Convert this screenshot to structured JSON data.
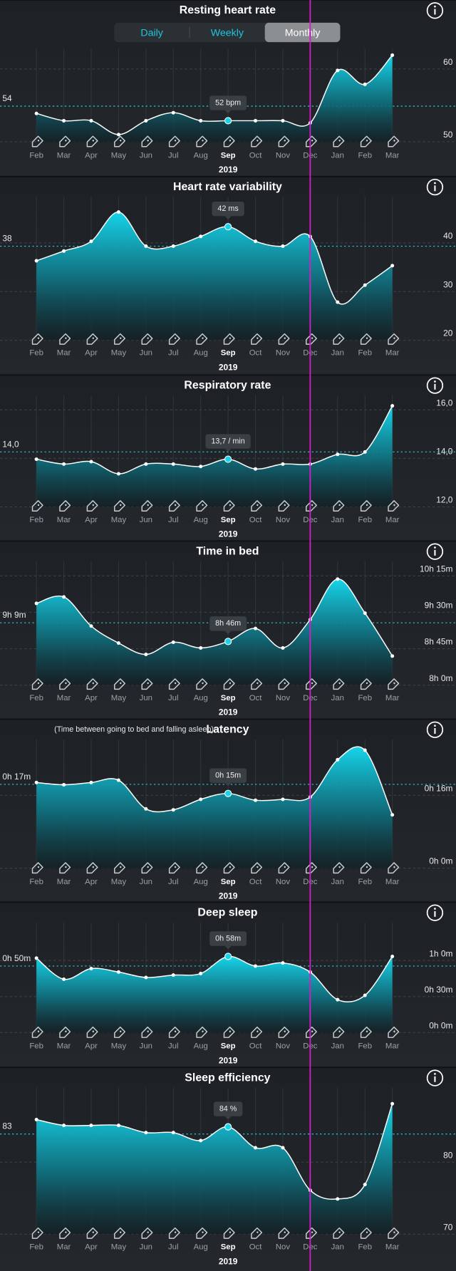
{
  "segmented_control": {
    "options": [
      "Daily",
      "Weekly",
      "Monthly"
    ],
    "selected": "Monthly"
  },
  "chart_data": [
    {
      "type": "area",
      "title": "Resting heart rate",
      "color": "#16d4ea",
      "categories": [
        "Feb",
        "Mar",
        "Apr",
        "May",
        "Jun",
        "Jul",
        "Aug",
        "Sep",
        "Oct",
        "Nov",
        "Dec",
        "Jan",
        "Feb",
        "Mar"
      ],
      "xlabel": "2019",
      "values": [
        53,
        52,
        52,
        50.1,
        52,
        53.1,
        52,
        52,
        52,
        52,
        51.7,
        58.9,
        57,
        61
      ],
      "value_labels": [
        null,
        null,
        null,
        null,
        null,
        null,
        null,
        "52 bpm",
        null,
        null,
        null,
        null,
        null,
        null
      ],
      "average": 54,
      "ylim": [
        49,
        61.9
      ],
      "yticks": [
        50,
        60
      ]
    },
    {
      "type": "area",
      "title": "Heart rate variability",
      "color": "#16d4ea",
      "categories": [
        "Feb",
        "Mar",
        "Apr",
        "May",
        "Jun",
        "Jul",
        "Aug",
        "Sep",
        "Oct",
        "Nov",
        "Dec",
        "Jan",
        "Feb",
        "Mar"
      ],
      "xlabel": "2019",
      "values": [
        35,
        37,
        39,
        45,
        38,
        38,
        40,
        42,
        39,
        38,
        40,
        26.5,
        30,
        34
      ],
      "value_labels": [
        null,
        null,
        null,
        null,
        null,
        null,
        null,
        "42 ms",
        null,
        null,
        null,
        null,
        null,
        null
      ],
      "average": 38,
      "ylim": [
        18.7,
        47.8
      ],
      "yticks": [
        20,
        30,
        40
      ]
    },
    {
      "type": "area",
      "title": "Respiratory rate",
      "color": "#16d4ea",
      "categories": [
        "Feb",
        "Mar",
        "Apr",
        "May",
        "Jun",
        "Jul",
        "Aug",
        "Sep",
        "Oct",
        "Nov",
        "Dec",
        "Jan",
        "Feb",
        "Mar"
      ],
      "xlabel": "2019",
      "values": [
        13.7,
        13.5,
        13.6,
        13.1,
        13.5,
        13.5,
        13.4,
        13.7,
        13.3,
        13.5,
        13.5,
        13.9,
        14,
        15.9
      ],
      "value_labels": [
        null,
        null,
        null,
        null,
        null,
        null,
        null,
        "13,7 / min",
        null,
        null,
        null,
        null,
        null,
        null
      ],
      "average": {
        "value": 14,
        "label": "14,0"
      },
      "ylim": [
        11.73,
        16.27
      ],
      "yticks": [
        {
          "value": 12,
          "label": "12,0"
        },
        {
          "value": 14,
          "label": "14,0"
        },
        {
          "value": 16,
          "label": "16,0"
        }
      ]
    },
    {
      "type": "area",
      "title": "Time in bed",
      "color": "#16d4ea",
      "categories": [
        "Feb",
        "Mar",
        "Apr",
        "May",
        "Jun",
        "Jul",
        "Aug",
        "Sep",
        "Oct",
        "Nov",
        "Dec",
        "Jan",
        "Feb",
        "Mar"
      ],
      "xlabel": "2019",
      "values": [
        573,
        581,
        545,
        524,
        510,
        525,
        518,
        526,
        542,
        518,
        553,
        603,
        561,
        508
      ],
      "value_labels": [
        null,
        null,
        null,
        null,
        null,
        null,
        null,
        "8h 46m",
        null,
        null,
        null,
        null,
        null,
        null
      ],
      "average": {
        "value": 549,
        "label": "9h 9m"
      },
      "ylim": [
        472,
        628
      ],
      "yticks": [
        {
          "value": 480,
          "label": "8h 0m"
        },
        {
          "value": 525,
          "label": "8h 45m"
        },
        {
          "value": 570,
          "label": "9h 30m"
        },
        {
          "value": 615,
          "label": "10h 15m"
        }
      ]
    },
    {
      "type": "area",
      "title": "Latency",
      "subtitle": "(Time between going to bed and falling asleep)",
      "color": "#16d4ea",
      "categories": [
        "Feb",
        "Mar",
        "Apr",
        "May",
        "Jun",
        "Jul",
        "Aug",
        "Sep",
        "Oct",
        "Nov",
        "Dec",
        "Jan",
        "Feb",
        "Mar"
      ],
      "xlabel": "2019",
      "values": [
        17.4,
        16.9,
        17.4,
        17.9,
        11.6,
        11.4,
        13.7,
        15,
        13.5,
        13.7,
        14.2,
        22.4,
        24.5,
        10.3
      ],
      "value_labels": [
        null,
        null,
        null,
        null,
        null,
        null,
        null,
        "0h 15m",
        null,
        null,
        null,
        null,
        null,
        null
      ],
      "average": {
        "value": 17,
        "label": "0h 17m"
      },
      "ylim": [
        -1.6,
        26.5
      ],
      "yticks": [
        {
          "value": 0,
          "label": "0h 0m"
        },
        {
          "value": 16,
          "label": "0h 16m"
        }
      ]
    },
    {
      "type": "area",
      "title": "Deep sleep",
      "color": "#16d4ea",
      "categories": [
        "Feb",
        "Mar",
        "Apr",
        "May",
        "Jun",
        "Jul",
        "Aug",
        "Sep",
        "Oct",
        "Nov",
        "Dec",
        "Jan",
        "Feb",
        "Mar"
      ],
      "xlabel": "2019",
      "values": [
        56.6,
        39,
        47.9,
        45,
        40.5,
        42.5,
        43.8,
        58,
        50,
        52.6,
        45,
        22,
        25.6,
        58
      ],
      "value_labels": [
        null,
        null,
        null,
        null,
        null,
        null,
        null,
        "0h 58m",
        null,
        null,
        null,
        null,
        null,
        null
      ],
      "average": {
        "value": 50,
        "label": "0h 50m"
      },
      "ylim": [
        -6.1,
        85.6
      ],
      "yticks": [
        {
          "value": 0,
          "label": "0h 0m"
        },
        {
          "value": 30,
          "label": "0h 30m"
        },
        {
          "value": 60,
          "label": "1h 0m"
        }
      ]
    },
    {
      "type": "area",
      "title": "Sleep efficiency",
      "color": "#16d4ea",
      "categories": [
        "Feb",
        "Mar",
        "Apr",
        "May",
        "Jun",
        "Jul",
        "Aug",
        "Sep",
        "Oct",
        "Nov",
        "Dec",
        "Jan",
        "Feb",
        "Mar"
      ],
      "xlabel": "2019",
      "values": [
        85,
        84.2,
        84.2,
        84.2,
        83.2,
        83.2,
        82.1,
        84,
        81.1,
        81.1,
        75.2,
        74,
        76,
        87.2
      ],
      "value_labels": [
        null,
        null,
        null,
        null,
        null,
        null,
        null,
        "84 %",
        null,
        null,
        null,
        null,
        null,
        null
      ],
      "average": 83,
      "ylim": [
        69.1,
        89.2
      ],
      "yticks": [
        70,
        80
      ]
    }
  ]
}
